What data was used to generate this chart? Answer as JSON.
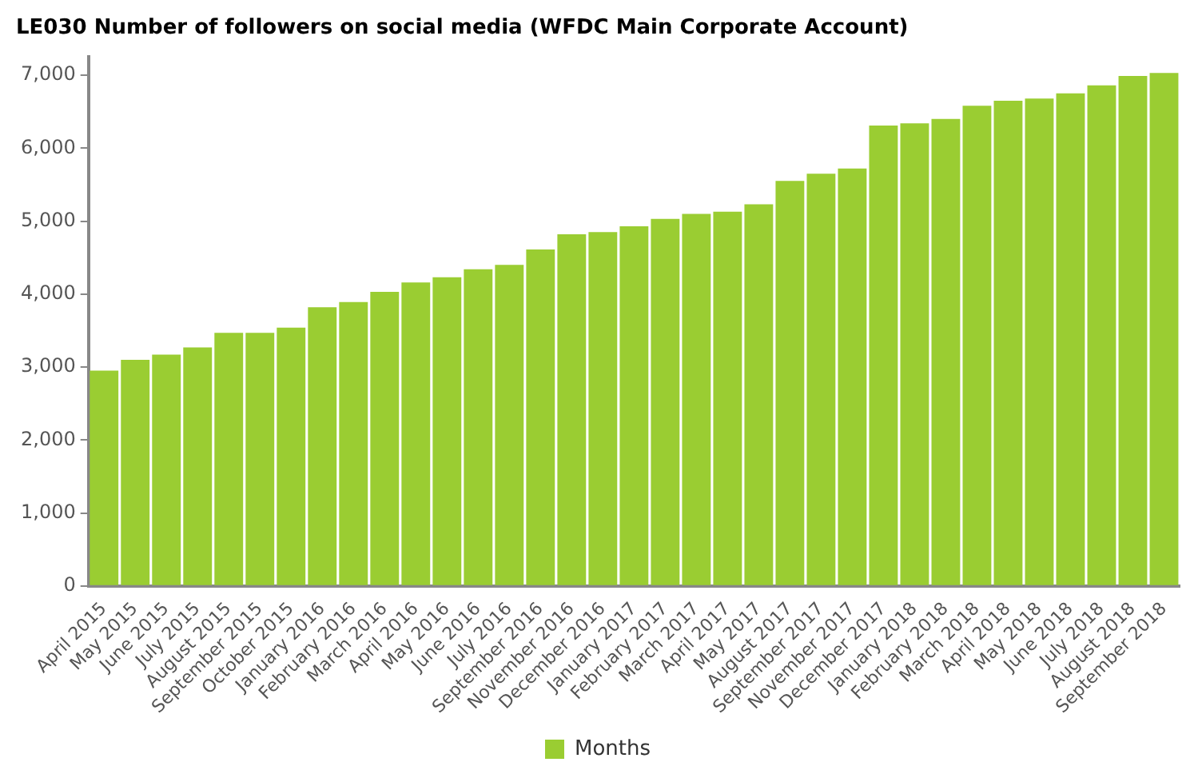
{
  "chart_data": {
    "type": "bar",
    "title": "LE030 Number of followers on social media (WFDC Main Corporate Account)",
    "categories": [
      "April 2015",
      "May 2015",
      "June 2015",
      "July 2015",
      "August 2015",
      "September 2015",
      "October 2015",
      "January 2016",
      "February 2016",
      "March 2016",
      "April 2016",
      "May 2016",
      "June 2016",
      "July 2016",
      "September 2016",
      "November 2016",
      "December 2016",
      "January 2017",
      "February 2017",
      "March 2017",
      "April 2017",
      "May 2017",
      "August 2017",
      "September 2017",
      "November 2017",
      "December 2017",
      "January 2018",
      "February 2018",
      "March 2018",
      "April 2018",
      "May 2018",
      "June 2018",
      "July 2018",
      "August 2018",
      "September 2018"
    ],
    "series": [
      {
        "name": "Months",
        "color": "#9acd32",
        "values": [
          2950,
          3100,
          3170,
          3270,
          3470,
          3470,
          3540,
          3820,
          3890,
          4030,
          4160,
          4230,
          4340,
          4400,
          4610,
          4820,
          4850,
          4930,
          5030,
          5100,
          5130,
          5230,
          5550,
          5650,
          5720,
          6310,
          6340,
          6400,
          6580,
          6650,
          6680,
          6750,
          6860,
          6990,
          7030
        ]
      }
    ],
    "ylim": [
      0,
      7250
    ],
    "yticks": [
      {
        "value": 0,
        "label": "0"
      },
      {
        "value": 1000,
        "label": "1,000"
      },
      {
        "value": 2000,
        "label": "2,000"
      },
      {
        "value": 3000,
        "label": "3,000"
      },
      {
        "value": 4000,
        "label": "4,000"
      },
      {
        "value": 5000,
        "label": "5,000"
      },
      {
        "value": 6000,
        "label": "6,000"
      },
      {
        "value": 7000,
        "label": "7,000"
      }
    ],
    "grid": false,
    "legend": "bottom"
  }
}
